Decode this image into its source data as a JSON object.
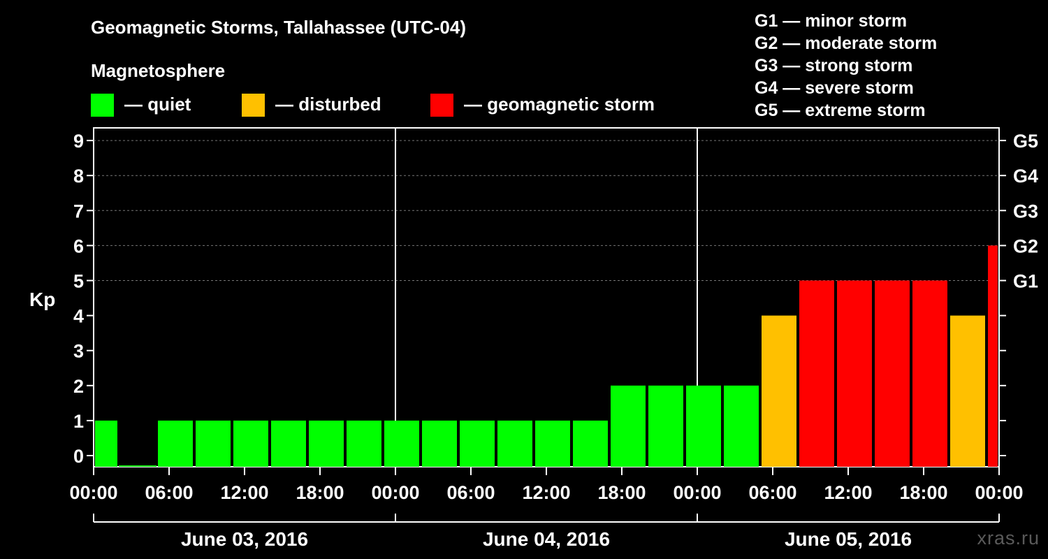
{
  "header": {
    "title": "Geomagnetic Storms, Tallahassee (UTC-04)",
    "subtitle": "Magnetosphere"
  },
  "legend": [
    {
      "label": "— quiet",
      "color": "#00ff00"
    },
    {
      "label": "— disturbed",
      "color": "#ffc000"
    },
    {
      "label": "— geomagnetic storm",
      "color": "#ff0000"
    }
  ],
  "storm_scale": [
    "G1 — minor storm",
    "G2 — moderate storm",
    "G3 — strong storm",
    "G4 — severe storm",
    "G5 — extreme storm"
  ],
  "watermark": "xras.ru",
  "chart_data": {
    "type": "bar",
    "title": "Geomagnetic Storms, Tallahassee (UTC-04)",
    "ylabel": "Kp",
    "ylim": [
      0,
      9
    ],
    "y_ticks": [
      "0",
      "1",
      "2",
      "3",
      "4",
      "5",
      "6",
      "7",
      "8",
      "9"
    ],
    "x_range_hours": [
      0,
      72
    ],
    "x_tick_labels": [
      "00:00",
      "06:00",
      "12:00",
      "18:00",
      "00:00",
      "06:00",
      "12:00",
      "18:00",
      "00:00",
      "06:00",
      "12:00",
      "18:00",
      "00:00"
    ],
    "date_labels": [
      "June 03, 2016",
      "June 04, 2016",
      "June 05, 2016"
    ],
    "right_axis": {
      "labels": [
        {
          "kp": 5,
          "label": "G1"
        },
        {
          "kp": 6,
          "label": "G2"
        },
        {
          "kp": 7,
          "label": "G3"
        },
        {
          "kp": 8,
          "label": "G4"
        },
        {
          "kp": 9,
          "label": "G5"
        }
      ]
    },
    "grid": "dashed horizontal at Kp 5-9",
    "bars": [
      {
        "start": 0,
        "end": 2,
        "kp": 1,
        "level": "quiet"
      },
      {
        "start": 2,
        "end": 5,
        "kp": 0,
        "level": "quiet"
      },
      {
        "start": 5,
        "end": 8,
        "kp": 1,
        "level": "quiet"
      },
      {
        "start": 8,
        "end": 11,
        "kp": 1,
        "level": "quiet"
      },
      {
        "start": 11,
        "end": 14,
        "kp": 1,
        "level": "quiet"
      },
      {
        "start": 14,
        "end": 17,
        "kp": 1,
        "level": "quiet"
      },
      {
        "start": 17,
        "end": 20,
        "kp": 1,
        "level": "quiet"
      },
      {
        "start": 20,
        "end": 23,
        "kp": 1,
        "level": "quiet"
      },
      {
        "start": 23,
        "end": 26,
        "kp": 1,
        "level": "quiet"
      },
      {
        "start": 26,
        "end": 29,
        "kp": 1,
        "level": "quiet"
      },
      {
        "start": 29,
        "end": 32,
        "kp": 1,
        "level": "quiet"
      },
      {
        "start": 32,
        "end": 35,
        "kp": 1,
        "level": "quiet"
      },
      {
        "start": 35,
        "end": 38,
        "kp": 1,
        "level": "quiet"
      },
      {
        "start": 38,
        "end": 41,
        "kp": 1,
        "level": "quiet"
      },
      {
        "start": 41,
        "end": 44,
        "kp": 2,
        "level": "quiet"
      },
      {
        "start": 44,
        "end": 47,
        "kp": 2,
        "level": "quiet"
      },
      {
        "start": 47,
        "end": 50,
        "kp": 2,
        "level": "quiet"
      },
      {
        "start": 50,
        "end": 53,
        "kp": 2,
        "level": "quiet"
      },
      {
        "start": 53,
        "end": 56,
        "kp": 4,
        "level": "disturbed"
      },
      {
        "start": 56,
        "end": 59,
        "kp": 5,
        "level": "storm"
      },
      {
        "start": 59,
        "end": 62,
        "kp": 5,
        "level": "storm"
      },
      {
        "start": 62,
        "end": 65,
        "kp": 5,
        "level": "storm"
      },
      {
        "start": 65,
        "end": 68,
        "kp": 5,
        "level": "storm"
      },
      {
        "start": 68,
        "end": 71,
        "kp": 4,
        "level": "disturbed"
      },
      {
        "start": 71,
        "end": 72,
        "kp": 6,
        "level": "storm"
      }
    ],
    "level_colors": {
      "quiet": "#00ff00",
      "disturbed": "#ffc000",
      "storm": "#ff0000"
    }
  }
}
